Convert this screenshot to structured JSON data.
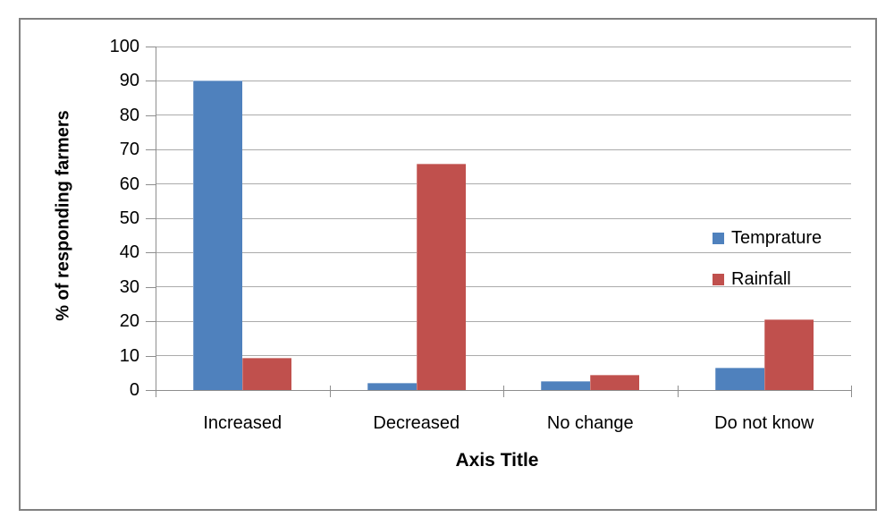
{
  "chart_data": {
    "type": "bar",
    "categories": [
      "Increased",
      "Decreased",
      "No change",
      "Do not know"
    ],
    "series": [
      {
        "name": "Temprature",
        "color": "#4F81BD",
        "values": [
          90,
          2,
          2.5,
          6.5
        ]
      },
      {
        "name": "Rainfall",
        "color": "#C0504D",
        "values": [
          9.5,
          66,
          4.5,
          20.5
        ]
      }
    ],
    "title": "",
    "xlabel": "Axis Title",
    "ylabel": "% of responding farmers",
    "ylim": [
      0,
      100
    ],
    "ytick_step": 10,
    "ytick_labels": [
      "0",
      "10",
      "20",
      "30",
      "40",
      "50",
      "60",
      "70",
      "80",
      "90",
      "100"
    ],
    "grid": true,
    "legend_position": "inside-right",
    "legend_entries": [
      "Temprature",
      "Rainfall"
    ]
  },
  "colors": {
    "temprature_series": "#4F81BD",
    "rainfall_series": "#C0504D",
    "gridline": "#ABABAB",
    "axis_line": "#8E8E8E",
    "frame_border": "#808080",
    "text": "#000000",
    "background": "#FFFFFF"
  }
}
